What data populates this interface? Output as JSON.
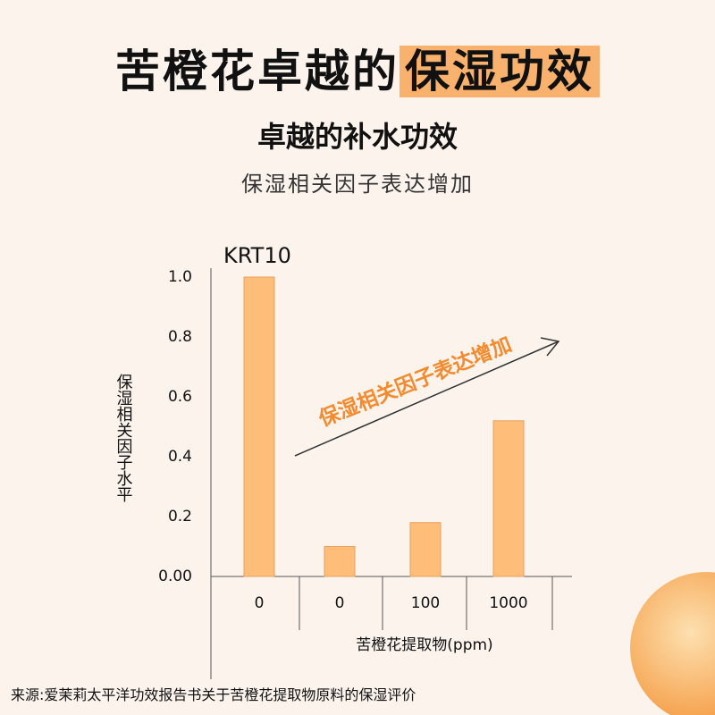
{
  "header": {
    "title_parts": [
      "苦橙花卓越的",
      "保湿功效"
    ],
    "subtitle": "卓越的补水功效",
    "description": "保湿相关因子表达增加"
  },
  "chart_data": {
    "type": "bar",
    "title": "KRT10",
    "y_label": "保湿相关因子水平",
    "x_label": "苦橙花提取物(ppm)",
    "annotation": "保湿相关因子表达增加",
    "categories": [
      "0",
      "0",
      "100",
      "1000"
    ],
    "values": [
      1.0,
      0.1,
      0.18,
      0.52
    ],
    "color": "#ffbd7a",
    "ylim": [
      0,
      1
    ],
    "yticks": [
      {
        "value": 0,
        "label": "0.00"
      },
      0.2,
      0.4,
      0.6,
      0.8,
      {
        "value": 1,
        "label": "1.0"
      }
    ]
  },
  "footer": {
    "source": "来源:爱茉莉太平洋功效报告书关于苦橙花提取物原料的保湿评价"
  }
}
